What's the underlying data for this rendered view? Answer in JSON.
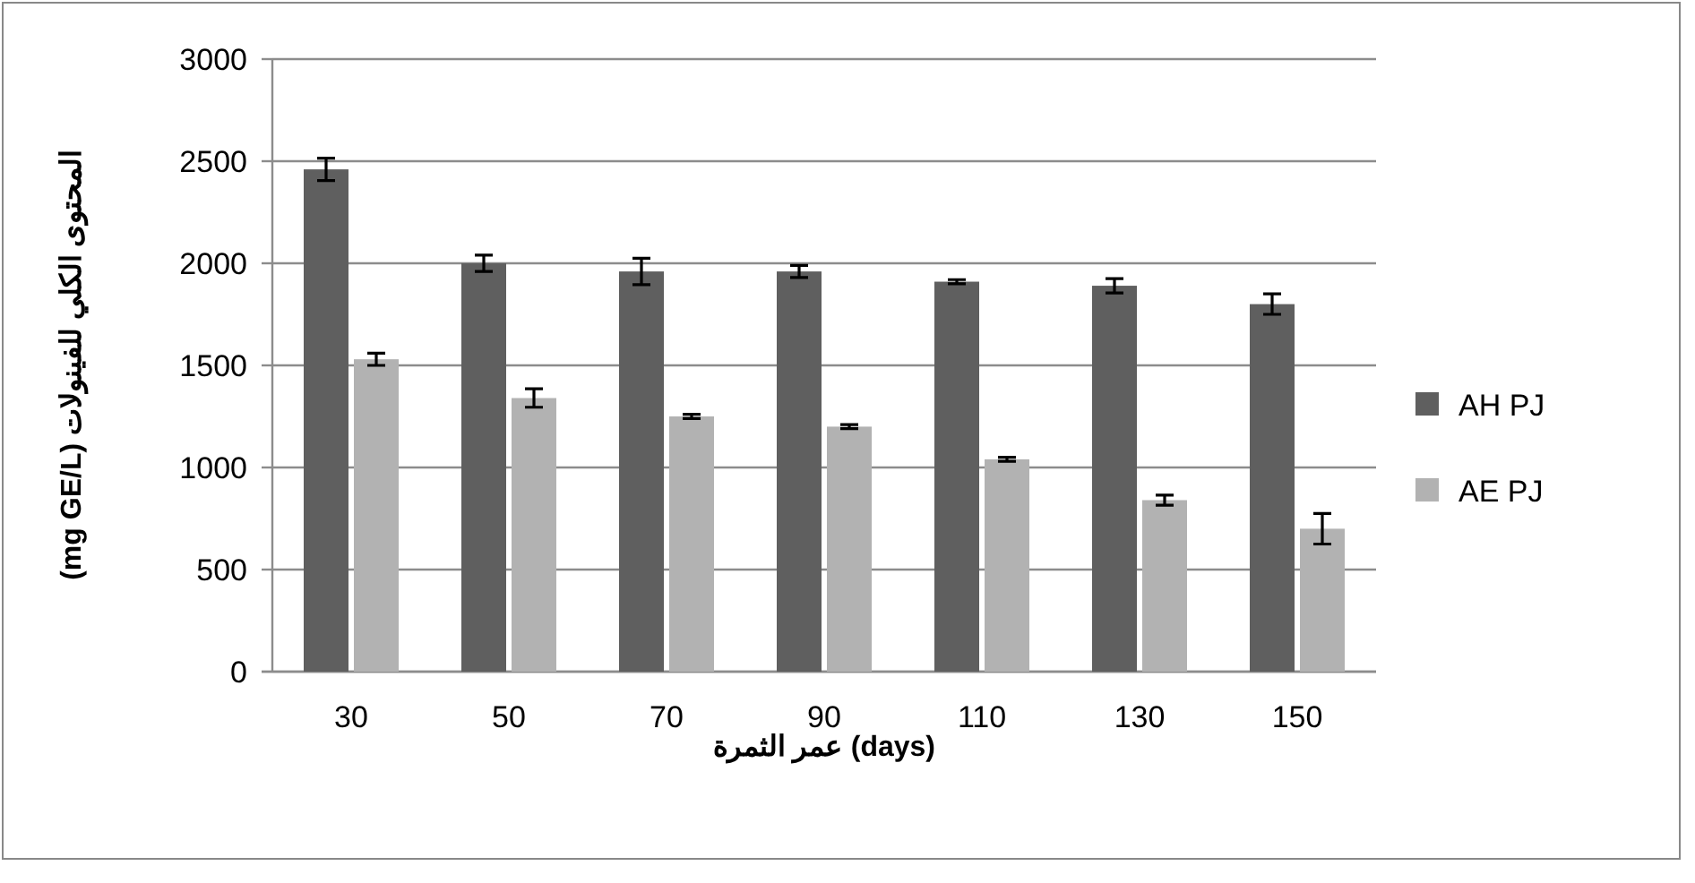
{
  "chart_data": {
    "type": "bar",
    "xlabel": "عمر الثمرة (days)",
    "ylabel": "(mg GE/L) المحتوى الكلي للفينولات",
    "categories": [
      "30",
      "50",
      "70",
      "90",
      "110",
      "130",
      "150"
    ],
    "series": [
      {
        "name": "AH PJ",
        "color": "#5f5f5f",
        "values": [
          2460,
          2000,
          1960,
          1960,
          1910,
          1890,
          1800
        ],
        "errors": [
          55,
          40,
          65,
          30,
          10,
          35,
          50
        ]
      },
      {
        "name": "AE PJ",
        "color": "#b2b2b2",
        "values": [
          1530,
          1340,
          1250,
          1200,
          1040,
          840,
          700
        ],
        "errors": [
          30,
          45,
          10,
          10,
          10,
          25,
          75
        ]
      }
    ],
    "ylim": [
      0,
      3000
    ],
    "yticks": [
      0,
      500,
      1000,
      1500,
      2000,
      2500,
      3000
    ],
    "grid": "y",
    "legend": "right"
  }
}
